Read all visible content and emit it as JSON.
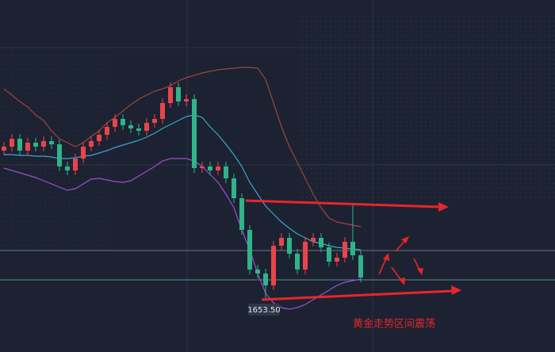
{
  "chart_data": {
    "type": "candlestick",
    "open": [
      1700.5,
      1701.75,
      1704.25,
      1700.5,
      1703,
      1701.75,
      1703.5,
      1702.5,
      1695.5,
      1694.25,
      1698,
      1701.75,
      1703.5,
      1705.5,
      1708,
      1710.5,
      1708.5,
      1707.5,
      1706.75,
      1709.25,
      1710.5,
      1715.5,
      1720.5,
      1716,
      1716.75,
      1695,
      1695.5,
      1694.25,
      1695.5,
      1691.75,
      1685.5,
      1675.5,
      1663,
      1661.75,
      1658,
      1670.5,
      1673,
      1668,
      1663,
      1671.75,
      1673,
      1670,
      1665.5,
      1666.75,
      1671.75,
      1667.5
    ],
    "high": [
      1703.25,
      1705.75,
      1705.75,
      1704.5,
      1704.5,
      1705,
      1705,
      1704,
      1697,
      1699.5,
      1703.25,
      1705,
      1707,
      1709.5,
      1712,
      1712,
      1710,
      1709,
      1710.75,
      1712,
      1717,
      1722,
      1722,
      1718.25,
      1718.25,
      1697,
      1697,
      1697,
      1697,
      1693.25,
      1687,
      1677,
      1664.5,
      1663.25,
      1672,
      1674.5,
      1674.5,
      1669.5,
      1673.25,
      1674.5,
      1674.5,
      1671.5,
      1668.25,
      1673.25,
      1683.5,
      1669
    ],
    "low": [
      1699,
      1700.25,
      1699,
      1699,
      1700.25,
      1700.25,
      1701,
      1694,
      1692.75,
      1692.75,
      1696.5,
      1700.25,
      1702,
      1704,
      1706.5,
      1707,
      1706,
      1705.25,
      1705.25,
      1707.75,
      1709,
      1714,
      1714.5,
      1714.5,
      1693.5,
      1693.5,
      1692.75,
      1692.75,
      1690.25,
      1684,
      1674,
      1661.5,
      1660.25,
      1653.5,
      1656.5,
      1669,
      1666.5,
      1661.5,
      1661.5,
      1670.25,
      1668.5,
      1664,
      1664,
      1665.25,
      1666,
      1659
    ],
    "close": [
      1701.75,
      1704.25,
      1700.5,
      1703,
      1701.75,
      1703.5,
      1702.5,
      1695.5,
      1694.25,
      1698,
      1701.75,
      1703.5,
      1705.5,
      1708,
      1710.5,
      1708.5,
      1707.5,
      1706.75,
      1709.25,
      1710.5,
      1715.5,
      1720.5,
      1716,
      1716.75,
      1695,
      1695.5,
      1694.25,
      1695.5,
      1691.75,
      1685.5,
      1675.5,
      1663,
      1661.75,
      1658,
      1670.5,
      1673,
      1668,
      1663,
      1671.75,
      1673,
      1670,
      1665.5,
      1666.75,
      1671.75,
      1667.5,
      1660.5
    ],
    "up_color": "#e8454a",
    "down_color": "#2fb38a",
    "ylim": [
      1637,
      1748
    ],
    "lines": [
      {
        "color": "#a0443c",
        "values": [
          1720,
          1718,
          1716,
          1714.25,
          1711.75,
          1710,
          1706.75,
          1704.25,
          1703,
          1701.75,
          1703,
          1705,
          1706.75,
          1709.25,
          1711,
          1713,
          1715,
          1716.75,
          1718,
          1719.25,
          1720,
          1721,
          1722.5,
          1723.5,
          1724.25,
          1725,
          1725.5,
          1726,
          1726.25,
          1726.5,
          1726.75,
          1726.75,
          1726.5,
          1723,
          1715.5,
          1708,
          1701.75,
          1696.75,
          1691.75,
          1686.75,
          1682.5,
          1679.25,
          1678,
          1677.5,
          1677,
          1676.5
        ]
      },
      {
        "color": "#3aa8c8",
        "values": [
          1699.25,
          1699.25,
          1699,
          1699,
          1698.75,
          1698.75,
          1698.5,
          1698,
          1698,
          1698.25,
          1698.75,
          1699,
          1699.75,
          1700.5,
          1701.5,
          1702.25,
          1703,
          1703.75,
          1704.75,
          1706,
          1707.5,
          1708.75,
          1710,
          1711.25,
          1711.75,
          1711,
          1708,
          1705.5,
          1702.5,
          1699.25,
          1695.5,
          1690.5,
          1686.75,
          1683,
          1680.5,
          1678,
          1676,
          1674.25,
          1673,
          1671.75,
          1671.25,
          1670.5,
          1670,
          1669.75,
          1669.5,
          1669.25
        ]
      },
      {
        "color": "#9b4fd0",
        "values": [
          1695,
          1694.25,
          1693.5,
          1692.75,
          1692,
          1691,
          1690,
          1689,
          1688,
          1688.5,
          1690,
          1691.5,
          1691.75,
          1691.25,
          1690.75,
          1690.5,
          1691,
          1692.5,
          1694,
          1695.5,
          1697.25,
          1698,
          1698,
          1698,
          1697.25,
          1695.5,
          1693,
          1690.5,
          1686.75,
          1682.5,
          1675.5,
          1669.25,
          1661.75,
          1655.5,
          1652.5,
          1651,
          1650.5,
          1651,
          1652,
          1653.5,
          1655,
          1656.5,
          1658,
          1659,
          1659.5,
          1660
        ]
      }
    ],
    "low_label": "1653.50",
    "annotation": "黄金走势区间震荡"
  }
}
